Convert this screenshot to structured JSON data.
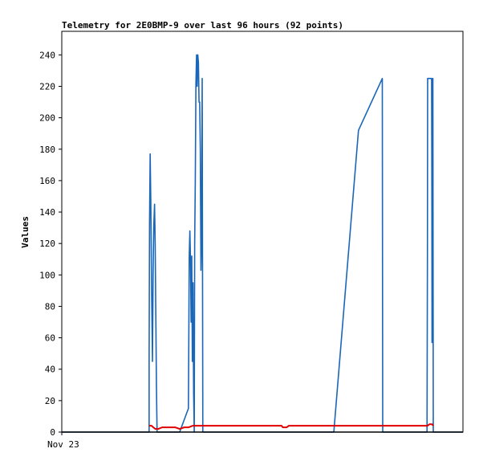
{
  "chart_data": {
    "type": "line",
    "title": "Telemetry for 2E0BMP-9 over last 96 hours (92 points)",
    "xlabel": "",
    "ylabel": "Values",
    "x_ticks": [
      {
        "x": 0,
        "label": "Nov 23"
      }
    ],
    "xlim": [
      0,
      96
    ],
    "ylim": [
      0,
      255
    ],
    "y_ticks": [
      0,
      20,
      40,
      60,
      80,
      100,
      120,
      140,
      160,
      180,
      200,
      220,
      240
    ],
    "grid": false,
    "legend": "none",
    "series": [
      {
        "color": "#1a66b8",
        "points": [
          [
            0,
            0
          ],
          [
            20.9,
            0
          ],
          [
            20.9,
            45
          ],
          [
            21.0,
            133
          ],
          [
            21.15,
            177
          ],
          [
            21.3,
            147
          ],
          [
            21.5,
            90
          ],
          [
            21.7,
            45
          ],
          [
            21.85,
            100
          ],
          [
            22.0,
            130
          ],
          [
            22.2,
            145
          ],
          [
            22.35,
            120
          ],
          [
            22.5,
            75
          ],
          [
            22.65,
            30
          ],
          [
            22.8,
            0
          ],
          [
            28.2,
            0
          ],
          [
            30.3,
            15
          ],
          [
            30.4,
            60
          ],
          [
            30.5,
            112
          ],
          [
            30.65,
            128
          ],
          [
            30.8,
            110
          ],
          [
            30.95,
            70
          ],
          [
            31.1,
            112
          ],
          [
            31.25,
            45
          ],
          [
            31.4,
            95
          ],
          [
            31.55,
            25
          ],
          [
            31.7,
            0
          ],
          [
            31.8,
            120
          ],
          [
            31.95,
            160
          ],
          [
            32.1,
            222
          ],
          [
            32.25,
            240
          ],
          [
            32.4,
            220
          ],
          [
            32.55,
            240
          ],
          [
            32.7,
            235
          ],
          [
            32.85,
            210
          ],
          [
            33.0,
            210
          ],
          [
            33.15,
            180
          ],
          [
            33.3,
            103
          ],
          [
            33.45,
            125
          ],
          [
            33.6,
            225
          ],
          [
            33.75,
            0
          ],
          [
            65.1,
            0
          ],
          [
            71.0,
            192
          ],
          [
            76.7,
            225
          ],
          [
            76.75,
            112
          ],
          [
            76.8,
            0
          ],
          [
            87.4,
            0
          ],
          [
            87.5,
            112
          ],
          [
            87.55,
            225
          ],
          [
            88.5,
            225
          ],
          [
            88.55,
            170
          ],
          [
            88.6,
            57
          ],
          [
            88.7,
            112
          ],
          [
            88.8,
            225
          ],
          [
            88.9,
            0
          ],
          [
            96,
            0
          ]
        ]
      },
      {
        "color": "#e00000",
        "points": [
          [
            20.9,
            4
          ],
          [
            21.5,
            4
          ],
          [
            21.9,
            3
          ],
          [
            22.4,
            2
          ],
          [
            23.1,
            2
          ],
          [
            24.0,
            3
          ],
          [
            25.0,
            3
          ],
          [
            26.0,
            3
          ],
          [
            27.2,
            3
          ],
          [
            28.2,
            2
          ],
          [
            29.3,
            3
          ],
          [
            30.3,
            3
          ],
          [
            31.3,
            4
          ],
          [
            40.0,
            4
          ],
          [
            50.0,
            4
          ],
          [
            52.6,
            4
          ],
          [
            52.9,
            3
          ],
          [
            53.8,
            3
          ],
          [
            54.3,
            4
          ],
          [
            60.0,
            4
          ],
          [
            70.0,
            4
          ],
          [
            80.0,
            4
          ],
          [
            87.5,
            4
          ],
          [
            88.0,
            5
          ],
          [
            88.6,
            5
          ],
          [
            88.9,
            4
          ]
        ]
      },
      {
        "color": "#000000",
        "points": [
          [
            0,
            0
          ],
          [
            96,
            0
          ]
        ]
      }
    ]
  }
}
